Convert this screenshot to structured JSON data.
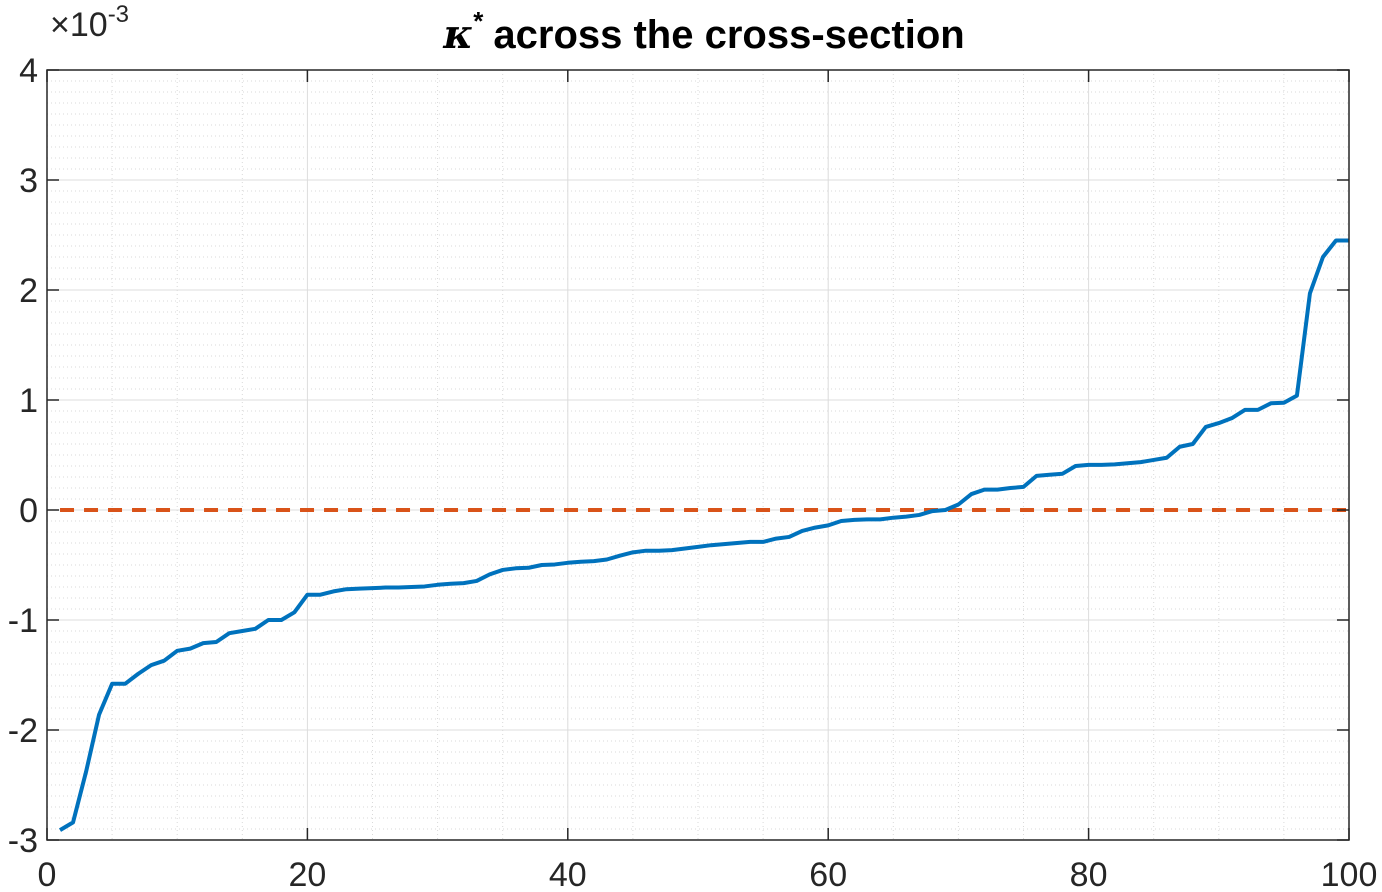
{
  "chart_data": {
    "type": "line",
    "title": "across the cross-section",
    "title_symbol": "κ",
    "title_superscript": "*",
    "axis_multiplier": "×10",
    "axis_multiplier_exponent": "-3",
    "xlim": [
      0,
      100
    ],
    "ylim": [
      -3,
      4
    ],
    "xticks": [
      0,
      20,
      40,
      60,
      80,
      100
    ],
    "yticks": [
      -3,
      -2,
      -1,
      0,
      1,
      2,
      3,
      4
    ],
    "xtick_labels": [
      "0",
      "20",
      "40",
      "60",
      "80",
      "100"
    ],
    "ytick_labels": [
      "-3",
      "-2",
      "-1",
      "0",
      "1",
      "2",
      "3",
      "4"
    ],
    "grid": true,
    "minor_grid": true,
    "series": [
      {
        "color": "#0072BD",
        "style": "solid",
        "x": [
          1,
          2,
          3,
          4,
          5,
          6,
          7,
          8,
          9,
          10,
          11,
          12,
          13,
          14,
          15,
          16,
          17,
          18,
          19,
          20,
          21,
          22,
          23,
          24,
          25,
          26,
          27,
          28,
          29,
          30,
          31,
          32,
          33,
          34,
          35,
          36,
          37,
          38,
          39,
          40,
          41,
          42,
          43,
          44,
          45,
          46,
          47,
          48,
          49,
          50,
          51,
          52,
          53,
          54,
          55,
          56,
          57,
          58,
          59,
          60,
          61,
          62,
          63,
          64,
          65,
          66,
          67,
          68,
          69,
          70,
          71,
          72,
          73,
          74,
          75,
          76,
          77,
          78,
          79,
          80,
          81,
          82,
          83,
          84,
          85,
          86,
          87,
          88,
          89,
          90,
          91,
          92,
          93,
          94,
          95,
          96,
          97,
          98,
          99,
          100
        ],
        "y": [
          -2.91,
          -2.84,
          -2.38,
          -1.86,
          -1.58,
          -1.58,
          -1.49,
          -1.41,
          -1.37,
          -1.28,
          -1.26,
          -1.21,
          -1.2,
          -1.12,
          -1.1,
          -1.08,
          -1.0,
          -1.0,
          -0.93,
          -0.77,
          -0.77,
          -0.74,
          -0.72,
          -0.715,
          -0.71,
          -0.705,
          -0.705,
          -0.7,
          -0.695,
          -0.68,
          -0.67,
          -0.665,
          -0.645,
          -0.585,
          -0.545,
          -0.53,
          -0.525,
          -0.5,
          -0.495,
          -0.48,
          -0.47,
          -0.465,
          -0.45,
          -0.415,
          -0.385,
          -0.37,
          -0.37,
          -0.365,
          -0.35,
          -0.335,
          -0.32,
          -0.31,
          -0.3,
          -0.29,
          -0.29,
          -0.26,
          -0.245,
          -0.19,
          -0.16,
          -0.14,
          -0.1,
          -0.09,
          -0.085,
          -0.085,
          -0.07,
          -0.06,
          -0.045,
          -0.01,
          0.0,
          0.05,
          0.145,
          0.185,
          0.185,
          0.2,
          0.21,
          0.31,
          0.32,
          0.33,
          0.4,
          0.41,
          0.41,
          0.415,
          0.425,
          0.435,
          0.455,
          0.475,
          0.575,
          0.6,
          0.755,
          0.79,
          0.835,
          0.91,
          0.91,
          0.97,
          0.975,
          1.04,
          1.97,
          2.3,
          2.45,
          2.45
        ]
      },
      {
        "color": "#D95319",
        "style": "dashed",
        "x": [
          1,
          100
        ],
        "y": [
          0,
          0
        ]
      }
    ]
  }
}
